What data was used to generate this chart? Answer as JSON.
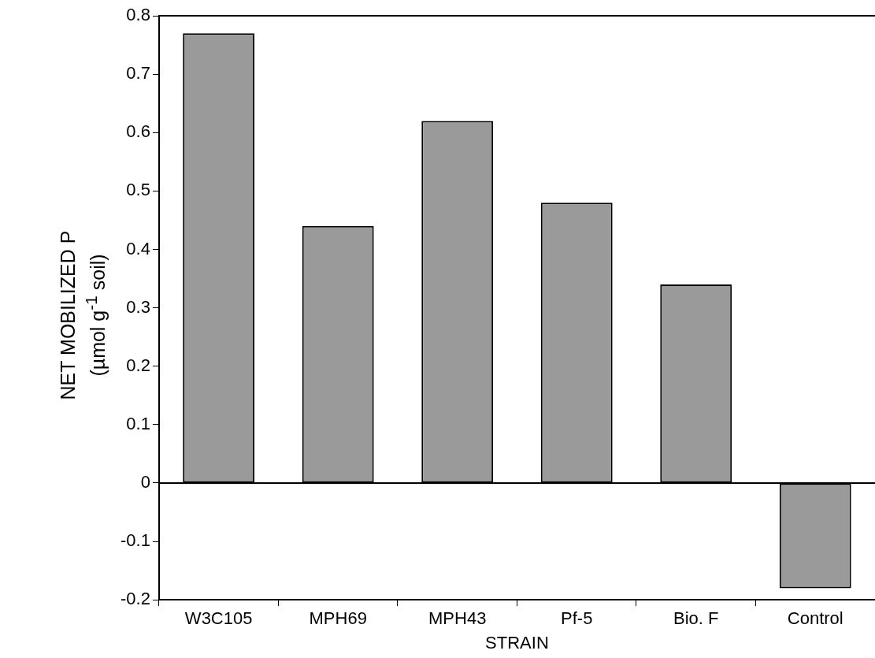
{
  "chart_data": {
    "type": "bar",
    "xlabel": "STRAIN",
    "ylabel": "NET MOBILIZED P\n(µmol g$^{-1}$ soil)",
    "categories": [
      "W3C105",
      "MPH69",
      "MPH43",
      "Pf-5",
      "Bio. F",
      "Control"
    ],
    "values": [
      0.77,
      0.44,
      0.62,
      0.48,
      0.34,
      -0.18
    ],
    "color": "#9a9a9a",
    "ylim": [
      -0.2,
      0.8
    ],
    "yticks": [
      -0.2,
      -0.1,
      0,
      0.1,
      0.2,
      0.3,
      0.4,
      0.5,
      0.6,
      0.7,
      0.8
    ],
    "ref_lines": [
      {
        "axis": "y",
        "value": 0,
        "color": "#000000"
      }
    ],
    "grid": false,
    "legend": false
  }
}
